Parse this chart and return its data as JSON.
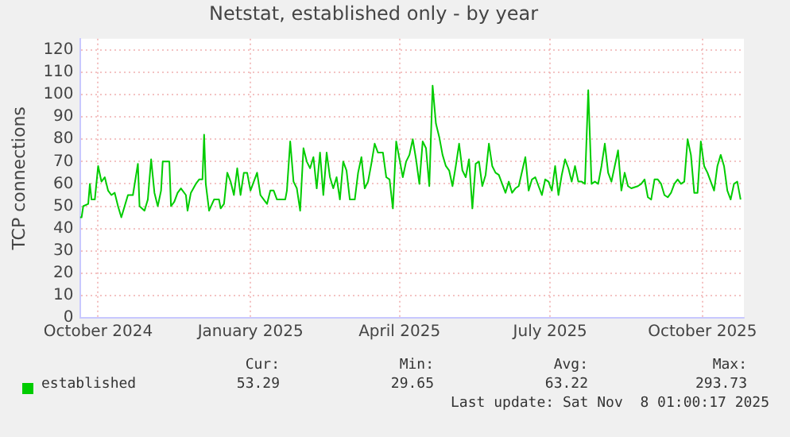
{
  "chart_data": {
    "type": "line",
    "title": "Netstat, established only - by year",
    "ylabel": "TCP connections",
    "xlim": [
      "2024-09-20",
      "2025-10-26"
    ],
    "xticks": [
      {
        "value": "2024-10-01",
        "label": "October 2024"
      },
      {
        "value": "2025-01-01",
        "label": "January 2025"
      },
      {
        "value": "2025-04-01",
        "label": "April 2025"
      },
      {
        "value": "2025-07-01",
        "label": "July 2025"
      },
      {
        "value": "2025-10-01",
        "label": "October 2025"
      }
    ],
    "ylim": [
      0,
      125
    ],
    "yticks": [
      0,
      10,
      20,
      30,
      40,
      50,
      60,
      70,
      80,
      90,
      100,
      110,
      120
    ],
    "grid": true,
    "legend": "bottom left",
    "marker": "none",
    "line_style": "solid",
    "x": [
      "2024-09-20",
      "2024-09-21",
      "2024-09-22",
      "2024-09-25",
      "2024-09-26",
      "2024-09-27",
      "2024-09-29",
      "2024-10-01",
      "2024-10-03",
      "2024-10-05",
      "2024-10-07",
      "2024-10-09",
      "2024-10-11",
      "2024-10-13",
      "2024-10-15",
      "2024-10-17",
      "2024-10-19",
      "2024-10-22",
      "2024-10-25",
      "2024-10-26",
      "2024-10-29",
      "2024-10-31",
      "2024-11-02",
      "2024-11-04",
      "2024-11-06",
      "2024-11-08",
      "2024-11-09",
      "2024-11-13",
      "2024-11-14",
      "2024-11-16",
      "2024-11-18",
      "2024-11-20",
      "2024-11-23",
      "2024-11-24",
      "2024-11-26",
      "2024-11-29",
      "2024-12-01",
      "2024-12-03",
      "2024-12-04",
      "2024-12-05",
      "2024-12-07",
      "2024-12-10",
      "2024-12-13",
      "2024-12-14",
      "2024-12-16",
      "2024-12-18",
      "2024-12-20",
      "2024-12-22",
      "2024-12-24",
      "2024-12-26",
      "2024-12-28",
      "2024-12-30",
      "2025-01-01",
      "2025-01-03",
      "2025-01-05",
      "2025-01-07",
      "2025-01-09",
      "2025-01-11",
      "2025-01-13",
      "2025-01-15",
      "2025-01-17",
      "2025-01-19",
      "2025-01-22",
      "2025-01-23",
      "2025-01-25",
      "2025-01-27",
      "2025-01-29",
      "2025-01-31",
      "2025-02-02",
      "2025-02-04",
      "2025-02-06",
      "2025-02-08",
      "2025-02-10",
      "2025-02-12",
      "2025-02-14",
      "2025-02-16",
      "2025-02-18",
      "2025-02-20",
      "2025-02-22",
      "2025-02-24",
      "2025-02-26",
      "2025-02-28",
      "2025-03-02",
      "2025-03-05",
      "2025-03-07",
      "2025-03-09",
      "2025-03-11",
      "2025-03-13",
      "2025-03-15",
      "2025-03-17",
      "2025-03-19",
      "2025-03-22",
      "2025-03-24",
      "2025-03-26",
      "2025-03-28",
      "2025-03-30",
      "2025-04-01",
      "2025-04-03",
      "2025-04-05",
      "2025-04-07",
      "2025-04-09",
      "2025-04-11",
      "2025-04-13",
      "2025-04-15",
      "2025-04-17",
      "2025-04-19",
      "2025-04-21",
      "2025-04-23",
      "2025-04-25",
      "2025-04-27",
      "2025-04-29",
      "2025-05-01",
      "2025-05-03",
      "2025-05-05",
      "2025-05-07",
      "2025-05-09",
      "2025-05-11",
      "2025-05-13",
      "2025-05-15",
      "2025-05-17",
      "2025-05-19",
      "2025-05-21",
      "2025-05-23",
      "2025-05-25",
      "2025-05-27",
      "2025-05-29",
      "2025-05-31",
      "2025-06-02",
      "2025-06-04",
      "2025-06-06",
      "2025-06-08",
      "2025-06-10",
      "2025-06-12",
      "2025-06-16",
      "2025-06-18",
      "2025-06-20",
      "2025-06-22",
      "2025-06-24",
      "2025-06-26",
      "2025-06-28",
      "2025-06-30",
      "2025-07-02",
      "2025-07-04",
      "2025-07-06",
      "2025-07-08",
      "2025-07-10",
      "2025-07-12",
      "2025-07-14",
      "2025-07-16",
      "2025-07-18",
      "2025-07-20",
      "2025-07-22",
      "2025-07-24",
      "2025-07-26",
      "2025-07-28",
      "2025-07-30",
      "2025-08-01",
      "2025-08-03",
      "2025-08-05",
      "2025-08-07",
      "2025-08-09",
      "2025-08-11",
      "2025-08-13",
      "2025-08-15",
      "2025-08-17",
      "2025-08-19",
      "2025-08-23",
      "2025-08-25",
      "2025-08-27",
      "2025-08-29",
      "2025-08-31",
      "2025-09-02",
      "2025-09-04",
      "2025-09-06",
      "2025-09-08",
      "2025-09-10",
      "2025-09-12",
      "2025-09-14",
      "2025-09-16",
      "2025-09-18",
      "2025-09-20",
      "2025-09-22",
      "2025-09-24",
      "2025-09-26",
      "2025-09-28",
      "2025-09-30",
      "2025-10-02",
      "2025-10-04",
      "2025-10-06",
      "2025-10-08",
      "2025-10-10",
      "2025-10-12",
      "2025-10-14",
      "2025-10-16",
      "2025-10-18",
      "2025-10-20",
      "2025-10-22",
      "2025-10-24"
    ],
    "series": [
      {
        "name": "established",
        "color": "#00cc00",
        "values": [
          45,
          45,
          50,
          51,
          60,
          53,
          53,
          68,
          61,
          63,
          57,
          55,
          56,
          50,
          45,
          50,
          55,
          55,
          69,
          50,
          48,
          53,
          71,
          56,
          50,
          57,
          70,
          70,
          50,
          52,
          56,
          58,
          55,
          48,
          56,
          60,
          62,
          62,
          82,
          60,
          48,
          53,
          53,
          49,
          51,
          65,
          61,
          55,
          67,
          55,
          65,
          65,
          57,
          61,
          65,
          55,
          53,
          51,
          57,
          57,
          53,
          53,
          53,
          57,
          79,
          61,
          58,
          48,
          76,
          70,
          67,
          72,
          58,
          74,
          55,
          74,
          63,
          58,
          63,
          53,
          70,
          66,
          53,
          53,
          65,
          72,
          58,
          61,
          69,
          78,
          74,
          74,
          63,
          62,
          49,
          79,
          71,
          63,
          70,
          73,
          80,
          71,
          60,
          79,
          76,
          59,
          104,
          87,
          81,
          73,
          68,
          66,
          59,
          68,
          78,
          66,
          63,
          71,
          49,
          69,
          70,
          59,
          64,
          78,
          68,
          65,
          64,
          60,
          56,
          61,
          56,
          58,
          59,
          72,
          57,
          62,
          63,
          59,
          55,
          62,
          61,
          57,
          68,
          55,
          64,
          71,
          67,
          61,
          68,
          61,
          61,
          60,
          102,
          60,
          61,
          60,
          68,
          78,
          65,
          61,
          68,
          75,
          57,
          65,
          59,
          58,
          59,
          60,
          62,
          54,
          53,
          62,
          62,
          60,
          55,
          54,
          56,
          60,
          62,
          60,
          61,
          80,
          73,
          56,
          56,
          79,
          68,
          65,
          61,
          57,
          68,
          73,
          68,
          57,
          53,
          60,
          61,
          53
        ]
      }
    ],
    "annotations": [
      "Cur:",
      "Min:",
      "Avg:",
      "Max:",
      "53.29",
      "29.65",
      "63.22",
      "293.73",
      "Last update: Sat Nov  8 01:00:17 2025"
    ]
  }
}
